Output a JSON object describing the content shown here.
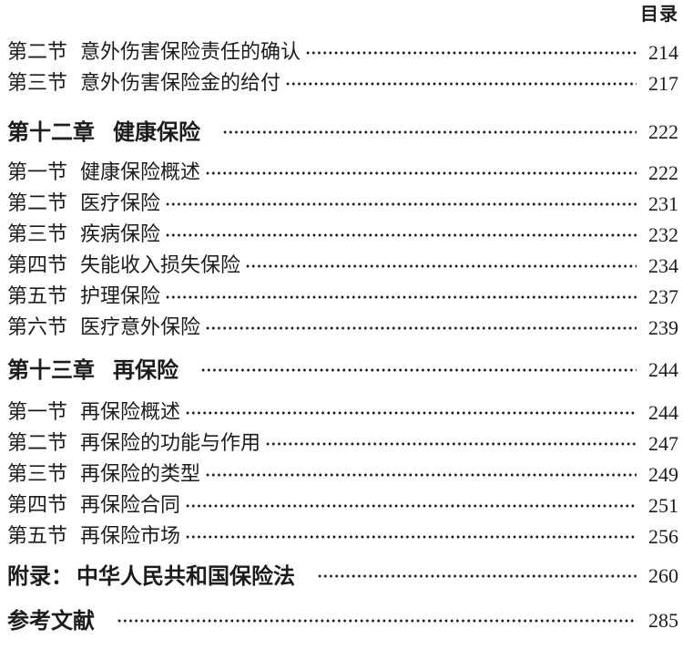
{
  "header": {
    "title": "目录"
  },
  "toc": {
    "entries": [
      {
        "type": "section",
        "label": "第二节",
        "title": "意外伤害保险责任的确认",
        "page": "214"
      },
      {
        "type": "section",
        "label": "第三节",
        "title": "意外伤害保险金的给付",
        "page": "217"
      },
      {
        "type": "chapter",
        "label": "第十二章",
        "title": "健康保险",
        "page": "222"
      },
      {
        "type": "section",
        "label": "第一节",
        "title": "健康保险概述",
        "page": "222"
      },
      {
        "type": "section",
        "label": "第二节",
        "title": "医疗保险",
        "page": "231"
      },
      {
        "type": "section",
        "label": "第三节",
        "title": "疾病保险",
        "page": "232"
      },
      {
        "type": "section",
        "label": "第四节",
        "title": "失能收入损失保险",
        "page": "234"
      },
      {
        "type": "section",
        "label": "第五节",
        "title": "护理保险",
        "page": "237"
      },
      {
        "type": "section",
        "label": "第六节",
        "title": "医疗意外保险",
        "page": "239"
      },
      {
        "type": "chapter",
        "label": "第十三章",
        "title": "再保险",
        "page": "244"
      },
      {
        "type": "section",
        "label": "第一节",
        "title": "再保险概述",
        "page": "244"
      },
      {
        "type": "section",
        "label": "第二节",
        "title": "再保险的功能与作用",
        "page": "247"
      },
      {
        "type": "section",
        "label": "第三节",
        "title": "再保险的类型",
        "page": "249"
      },
      {
        "type": "section",
        "label": "第四节",
        "title": "再保险合同",
        "page": "251"
      },
      {
        "type": "section",
        "label": "第五节",
        "title": "再保险市场",
        "page": "256"
      },
      {
        "type": "appendix",
        "label": "附录：",
        "title": "中华人民共和国保险法",
        "page": "260"
      },
      {
        "type": "references",
        "label": "参考文献",
        "title": "",
        "page": "285"
      }
    ]
  },
  "colors": {
    "text": "#1c1c1c",
    "background": "#ffffff"
  }
}
